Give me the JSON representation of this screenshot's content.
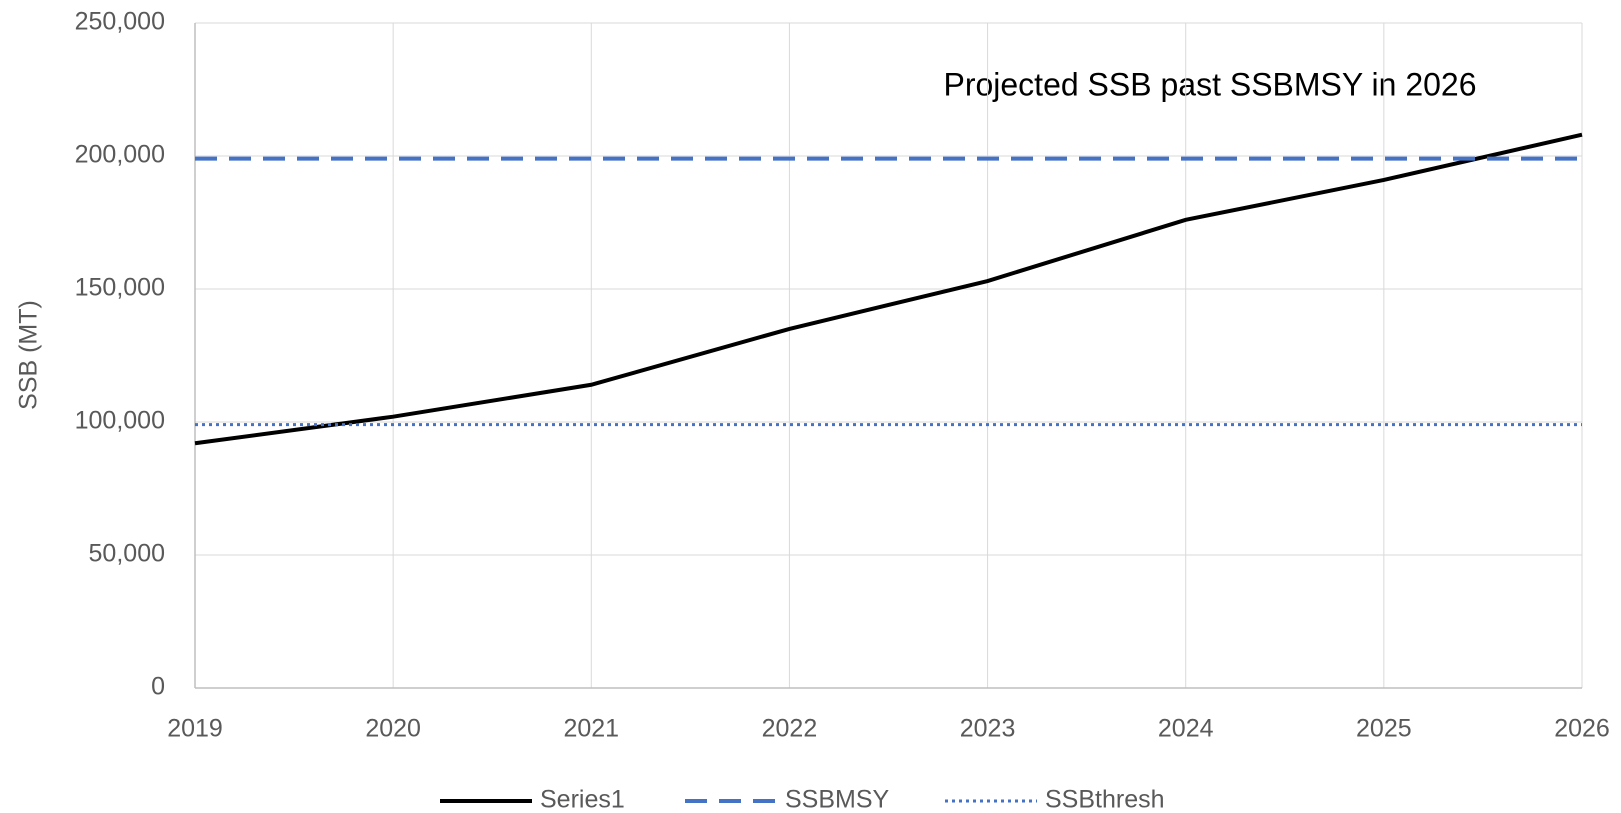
{
  "chart_data": {
    "type": "line",
    "annotation": "Projected SSB past SSBMSY in 2026",
    "y_label": "SSB (MT)",
    "x": [
      2019,
      2020,
      2021,
      2022,
      2023,
      2024,
      2025,
      2026
    ],
    "series": [
      {
        "name": "Series1",
        "color": "#000000",
        "dash": "solid",
        "values": [
          92000,
          102000,
          114000,
          135000,
          153000,
          176000,
          191000,
          208000
        ]
      },
      {
        "name": "SSBMSY",
        "color": "#4472c4",
        "dash": "dashed",
        "values": [
          199000,
          199000,
          199000,
          199000,
          199000,
          199000,
          199000,
          199000
        ]
      },
      {
        "name": "SSBthresh",
        "color": "#4472c4",
        "dash": "dotted",
        "values": [
          99000,
          99000,
          99000,
          99000,
          99000,
          99000,
          99000,
          99000
        ]
      }
    ],
    "xlim": [
      2019,
      2026
    ],
    "xticks": [
      2019,
      2020,
      2021,
      2022,
      2023,
      2024,
      2025,
      2026
    ],
    "ylim": [
      0,
      250000
    ],
    "yticks": [
      0,
      {
        "value": 50000,
        "label": "50,000"
      },
      {
        "value": 100000,
        "label": "100,000"
      },
      {
        "value": 150000,
        "label": "150,000"
      },
      {
        "value": 200000,
        "label": "200,000"
      },
      {
        "value": 250000,
        "label": "250,000"
      }
    ],
    "grid": true,
    "legend": "bottom"
  }
}
